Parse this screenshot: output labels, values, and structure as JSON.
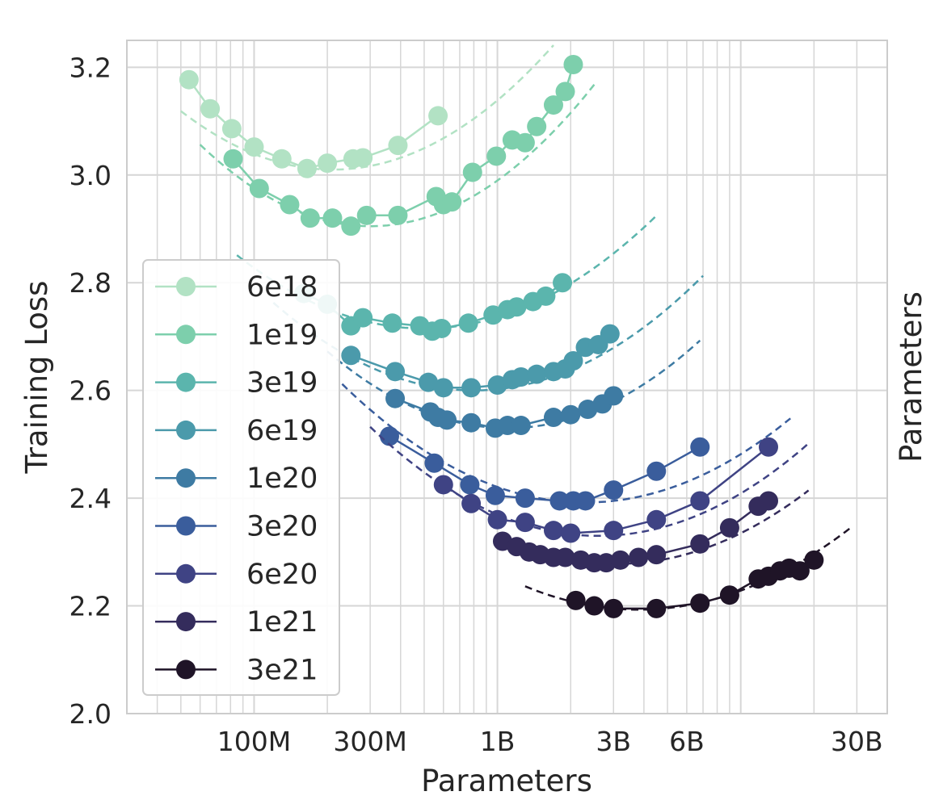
{
  "chart_data": {
    "type": "line",
    "xlabel": "Parameters",
    "ylabel": "Training Loss",
    "side_label": "Parameters",
    "x_scale": "log",
    "xlim": [
      30000000,
      40000000000
    ],
    "ylim": [
      2.0,
      3.25
    ],
    "xticks": [
      {
        "value": 100000000,
        "label": "100M"
      },
      {
        "value": 300000000,
        "label": "300M"
      },
      {
        "value": 1000000000,
        "label": "1B"
      },
      {
        "value": 3000000000,
        "label": "3B"
      },
      {
        "value": 6000000000,
        "label": "6B"
      },
      {
        "value": 30000000000,
        "label": "30B"
      }
    ],
    "yticks": [
      {
        "value": 2.0,
        "label": "2.0"
      },
      {
        "value": 2.2,
        "label": "2.2"
      },
      {
        "value": 2.4,
        "label": "2.4"
      },
      {
        "value": 2.6,
        "label": "2.6"
      },
      {
        "value": 2.8,
        "label": "2.8"
      },
      {
        "value": 3.0,
        "label": "3.0"
      },
      {
        "value": 3.2,
        "label": "3.2"
      }
    ],
    "grid": true,
    "legend_position": "left-middle",
    "series": [
      {
        "name": "6e18",
        "color": "#b2e2c4",
        "fit": {
          "a": 3.01,
          "b": 0.28,
          "c": 210000000,
          "xmin": 50000000,
          "xmax": 1700000000
        },
        "points": [
          [
            54000000,
            3.177
          ],
          [
            66000000,
            3.123
          ],
          [
            81000000,
            3.086
          ],
          [
            100000000,
            3.052
          ],
          [
            130000000,
            3.03
          ],
          [
            165000000,
            3.012
          ],
          [
            200000000,
            3.022
          ],
          [
            255000000,
            3.03
          ],
          [
            280000000,
            3.032
          ],
          [
            390000000,
            3.055
          ],
          [
            570000000,
            3.11
          ]
        ]
      },
      {
        "name": "1e19",
        "color": "#7dcfac",
        "fit": {
          "a": 2.905,
          "b": 0.31,
          "c": 300000000,
          "xmin": 60000000,
          "xmax": 2500000000
        },
        "points": [
          [
            82000000,
            3.03
          ],
          [
            105000000,
            2.975
          ],
          [
            140000000,
            2.945
          ],
          [
            170000000,
            2.92
          ],
          [
            210000000,
            2.92
          ],
          [
            250000000,
            2.905
          ],
          [
            290000000,
            2.925
          ],
          [
            390000000,
            2.925
          ],
          [
            560000000,
            2.96
          ],
          [
            600000000,
            2.945
          ],
          [
            650000000,
            2.95
          ],
          [
            790000000,
            3.005
          ],
          [
            990000000,
            3.035
          ],
          [
            1150000000,
            3.065
          ],
          [
            1300000000,
            3.06
          ],
          [
            1450000000,
            3.09
          ],
          [
            1700000000,
            3.13
          ],
          [
            1900000000,
            3.155
          ],
          [
            2050000000,
            3.205
          ]
        ]
      },
      {
        "name": "3e19",
        "color": "#5bb5ad",
        "fit": {
          "a": 2.715,
          "b": 0.23,
          "c": 500000000,
          "xmin": 85000000,
          "xmax": 4500000000
        },
        "points": [
          [
            160000000,
            2.78
          ],
          [
            200000000,
            2.76
          ],
          [
            250000000,
            2.72
          ],
          [
            280000000,
            2.735
          ],
          [
            370000000,
            2.725
          ],
          [
            480000000,
            2.72
          ],
          [
            540000000,
            2.71
          ],
          [
            590000000,
            2.715
          ],
          [
            760000000,
            2.725
          ],
          [
            960000000,
            2.74
          ],
          [
            1100000000,
            2.75
          ],
          [
            1200000000,
            2.755
          ],
          [
            1400000000,
            2.765
          ],
          [
            1580000000,
            2.775
          ],
          [
            1850000000,
            2.8
          ]
        ]
      },
      {
        "name": "6e19",
        "color": "#4b9aab",
        "fit": {
          "a": 2.6,
          "b": 0.24,
          "c": 800000000,
          "xmin": 120000000,
          "xmax": 7000000000
        },
        "points": [
          [
            250000000,
            2.665
          ],
          [
            380000000,
            2.635
          ],
          [
            520000000,
            2.615
          ],
          [
            600000000,
            2.605
          ],
          [
            780000000,
            2.605
          ],
          [
            1000000000,
            2.61
          ],
          [
            1150000000,
            2.62
          ],
          [
            1250000000,
            2.625
          ],
          [
            1450000000,
            2.63
          ],
          [
            1700000000,
            2.635
          ],
          [
            1900000000,
            2.64
          ],
          [
            2050000000,
            2.655
          ],
          [
            2300000000,
            2.68
          ],
          [
            2600000000,
            2.685
          ],
          [
            2900000000,
            2.705
          ]
        ]
      },
      {
        "name": "1e20",
        "color": "#3e7ba3",
        "fit": {
          "a": 2.53,
          "b": 0.26,
          "c": 1100000000,
          "xmin": 200000000,
          "xmax": 6800000000
        },
        "points": [
          [
            380000000,
            2.585
          ],
          [
            530000000,
            2.56
          ],
          [
            570000000,
            2.55
          ],
          [
            620000000,
            2.545
          ],
          [
            780000000,
            2.54
          ],
          [
            980000000,
            2.53
          ],
          [
            1100000000,
            2.535
          ],
          [
            1250000000,
            2.535
          ],
          [
            1700000000,
            2.55
          ],
          [
            2000000000,
            2.555
          ],
          [
            2350000000,
            2.565
          ],
          [
            2700000000,
            2.575
          ],
          [
            3000000000,
            2.59
          ]
        ]
      },
      {
        "name": "3e20",
        "color": "#3a5d9c",
        "fit": {
          "a": 2.392,
          "b": 0.22,
          "c": 2300000000,
          "xmin": 230000000,
          "xmax": 16000000000
        },
        "points": [
          [
            360000000,
            2.515
          ],
          [
            550000000,
            2.465
          ],
          [
            770000000,
            2.425
          ],
          [
            980000000,
            2.405
          ],
          [
            1300000000,
            2.4
          ],
          [
            1800000000,
            2.395
          ],
          [
            2050000000,
            2.395
          ],
          [
            2300000000,
            2.395
          ],
          [
            3000000000,
            2.415
          ],
          [
            4500000000,
            2.45
          ],
          [
            6800000000,
            2.495
          ]
        ]
      },
      {
        "name": "6e20",
        "color": "#3f4384",
        "fit": {
          "a": 2.33,
          "b": 0.23,
          "c": 2600000000,
          "xmin": 300000000,
          "xmax": 19000000000
        },
        "points": [
          [
            600000000,
            2.425
          ],
          [
            780000000,
            2.39
          ],
          [
            1000000000,
            2.36
          ],
          [
            1300000000,
            2.355
          ],
          [
            1700000000,
            2.34
          ],
          [
            2000000000,
            2.335
          ],
          [
            3000000000,
            2.34
          ],
          [
            4500000000,
            2.36
          ],
          [
            6800000000,
            2.395
          ],
          [
            13000000000,
            2.495
          ]
        ]
      },
      {
        "name": "1e21",
        "color": "#342c5c",
        "fit": {
          "a": 2.278,
          "b": 0.22,
          "c": 3100000000,
          "xmin": 1000000000,
          "xmax": 19000000000
        },
        "points": [
          [
            1050000000,
            2.32
          ],
          [
            1200000000,
            2.31
          ],
          [
            1350000000,
            2.3
          ],
          [
            1500000000,
            2.295
          ],
          [
            1700000000,
            2.29
          ],
          [
            1900000000,
            2.29
          ],
          [
            2200000000,
            2.285
          ],
          [
            2500000000,
            2.28
          ],
          [
            2800000000,
            2.28
          ],
          [
            3200000000,
            2.285
          ],
          [
            3800000000,
            2.29
          ],
          [
            4500000000,
            2.295
          ],
          [
            6800000000,
            2.315
          ],
          [
            9000000000,
            2.345
          ],
          [
            11800000000,
            2.385
          ],
          [
            13000000000,
            2.395
          ]
        ]
      },
      {
        "name": "3e21",
        "color": "#1f1427",
        "fit": {
          "a": 2.193,
          "b": 0.2,
          "c": 3800000000,
          "xmin": 1300000000,
          "xmax": 28000000000
        },
        "points": [
          [
            2100000000,
            2.21
          ],
          [
            2500000000,
            2.2
          ],
          [
            3000000000,
            2.195
          ],
          [
            4500000000,
            2.195
          ],
          [
            6800000000,
            2.205
          ],
          [
            9000000000,
            2.22
          ],
          [
            11800000000,
            2.25
          ],
          [
            13000000000,
            2.255
          ],
          [
            14500000000,
            2.265
          ],
          [
            15800000000,
            2.27
          ],
          [
            17500000000,
            2.265
          ],
          [
            20000000000,
            2.285
          ]
        ]
      }
    ]
  }
}
